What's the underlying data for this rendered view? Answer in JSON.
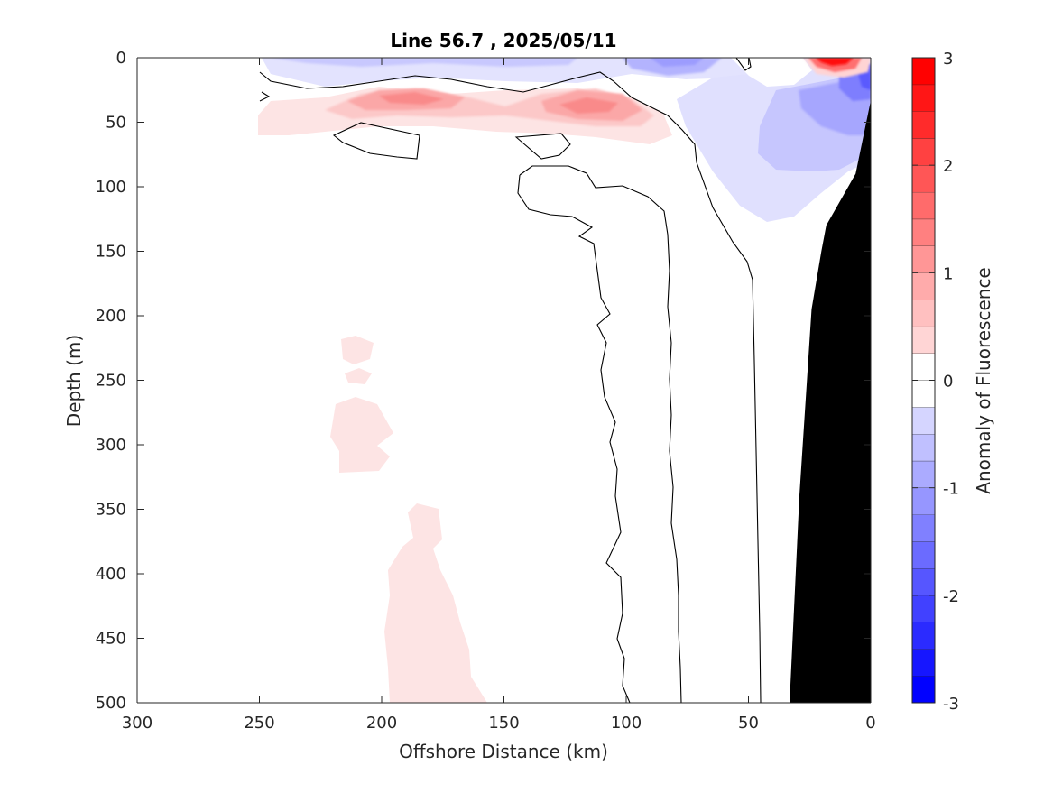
{
  "chart_data": {
    "type": "heatmap",
    "title": "Line 56.7 , 2025/05/11",
    "xlabel": "Offshore Distance (km)",
    "ylabel": "Depth (m)",
    "x_reversed": true,
    "y_reversed": true,
    "xlim": [
      0,
      300
    ],
    "ylim": [
      0,
      500
    ],
    "xticks": [
      300,
      250,
      200,
      150,
      100,
      50,
      0
    ],
    "yticks": [
      0,
      50,
      100,
      150,
      200,
      250,
      300,
      350,
      400,
      450,
      500
    ],
    "colorbar": {
      "label": "Anomaly of Fluorescence",
      "lim": [
        -3,
        3
      ],
      "ticks": [
        3,
        2,
        1,
        0,
        -1,
        -2,
        -3
      ],
      "levels": [
        -3,
        -2.75,
        -2.5,
        -2.25,
        -2,
        -1.75,
        -1.5,
        -1.25,
        -1,
        -0.75,
        -0.5,
        -0.25,
        0,
        0.25,
        0.5,
        0.75,
        1,
        1.25,
        1.5,
        1.75,
        2,
        2.25,
        2.5,
        2.75,
        3
      ],
      "low_color": "#0000ff",
      "mid_color": "#ffffff",
      "high_color": "#ff0000"
    },
    "anomaly_features": [
      {
        "name": "surface negative band",
        "x_range": [
          250,
          0
        ],
        "depth_range": [
          0,
          20
        ],
        "value": -0.6
      },
      {
        "name": "subsurface maximum",
        "x_center": 190,
        "depth_center": 30,
        "value": 1.3
      },
      {
        "name": "subsurface maximum",
        "x_center": 115,
        "depth_center": 40,
        "value": 1.2
      },
      {
        "name": "nearshore surface maximum",
        "x_center": 14,
        "depth_center": 2,
        "value": 2.7
      },
      {
        "name": "nearshore negative plume",
        "x_range": [
          90,
          0
        ],
        "depth_range": [
          0,
          130
        ],
        "value": -0.8
      },
      {
        "name": "weak positive patches",
        "x_range": [
          210,
          160
        ],
        "depth_range": [
          215,
          500
        ],
        "value": 0.1
      }
    ],
    "zero_contour_x": [
      {
        "depth": 60,
        "x": [
          133,
          100,
          72
        ]
      },
      {
        "depth": 100,
        "x": [
          131,
          98,
          57
        ]
      },
      {
        "depth": 150,
        "x": [
          112,
          84,
          52
        ]
      },
      {
        "depth": 200,
        "x": [
          102,
          84,
          45
        ]
      },
      {
        "depth": 300,
        "x": [
          96,
          83,
          44
        ]
      },
      {
        "depth": 400,
        "x": [
          101,
          80,
          44
        ]
      },
      {
        "depth": 500,
        "x": [
          99,
          78,
          44
        ]
      }
    ],
    "bathymetry": [
      [
        0,
        35
      ],
      [
        6,
        90
      ],
      [
        18,
        130
      ],
      [
        20,
        150
      ],
      [
        24,
        195
      ],
      [
        29,
        340
      ],
      [
        33,
        500
      ]
    ]
  }
}
